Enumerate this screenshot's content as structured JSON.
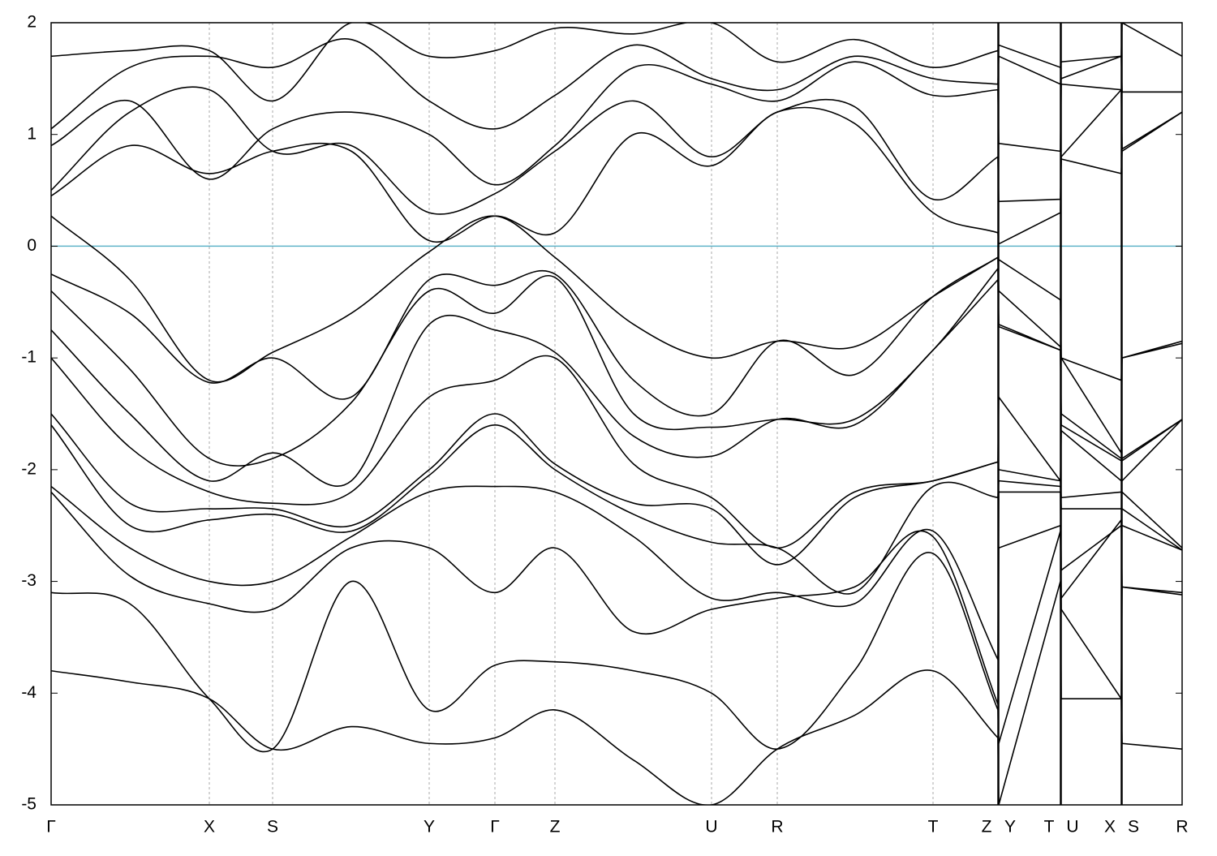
{
  "chart_data": {
    "type": "line",
    "xlim": [
      0,
      1394
    ],
    "ylim": [
      -5,
      2
    ],
    "yticks": [
      -5,
      -4,
      -3,
      -2,
      -1,
      0,
      1,
      2
    ],
    "xticks": [
      {
        "value": 0,
        "label": "Γ"
      },
      {
        "value": 195,
        "label": "X"
      },
      {
        "value": 273,
        "label": "S"
      },
      {
        "value": 466,
        "label": "Y"
      },
      {
        "value": 547,
        "label": "Γ"
      },
      {
        "value": 621,
        "label": "Z"
      },
      {
        "value": 814,
        "label": "U"
      },
      {
        "value": 895,
        "label": "R"
      },
      {
        "value": 1087,
        "label": "T"
      },
      {
        "value": 1167,
        "label": "Z"
      },
      {
        "value": 1168,
        "label": "Y"
      },
      {
        "value": 1244,
        "label": "T"
      },
      {
        "value": 1245,
        "label": "U"
      },
      {
        "value": 1319,
        "label": "X"
      },
      {
        "value": 1320,
        "label": "S"
      },
      {
        "value": 1394,
        "label": "R"
      }
    ],
    "grid": true,
    "hline": {
      "value": 0,
      "color": "#5fb3c8"
    },
    "x": [
      0,
      97,
      195,
      273,
      370,
      466,
      547,
      621,
      718,
      814,
      895,
      990,
      1087,
      1167,
      1168,
      1244,
      1245,
      1319,
      1320,
      1394
    ],
    "series": [
      {
        "color": "#000000",
        "values": [
          0.27,
          -0.3,
          -1.2,
          -0.95,
          -0.6,
          -0.05,
          0.27,
          -0.1,
          -0.7,
          -1.0,
          -0.85,
          -0.9,
          -0.45,
          -0.1,
          -0.12,
          -0.48,
          -1.0,
          -1.2,
          -1.0,
          -0.85
        ]
      },
      {
        "color": "#000000",
        "values": [
          -0.25,
          -0.6,
          -1.22,
          -1.0,
          -1.35,
          -0.3,
          -0.35,
          -0.25,
          -1.2,
          -1.5,
          -0.85,
          -1.15,
          -0.45,
          -0.1,
          -0.4,
          -0.9,
          -1.0,
          -1.85,
          -1.0,
          -0.87
        ]
      },
      {
        "color": "#000000",
        "values": [
          -0.4,
          -1.1,
          -1.9,
          -1.9,
          -1.4,
          -0.4,
          -0.6,
          -0.28,
          -1.5,
          -1.62,
          -1.55,
          -1.55,
          -0.93,
          -0.2,
          -0.7,
          -0.93,
          -1.5,
          -1.9,
          -1.9,
          -1.55
        ]
      },
      {
        "color": "#000000",
        "values": [
          -0.75,
          -1.5,
          -2.1,
          -1.85,
          -2.1,
          -0.7,
          -0.75,
          -0.95,
          -1.7,
          -1.88,
          -1.55,
          -1.6,
          -0.93,
          -0.3,
          -0.72,
          -0.93,
          -1.6,
          -1.92,
          -1.92,
          -1.55
        ]
      },
      {
        "color": "#000000",
        "values": [
          -1.0,
          -1.8,
          -2.2,
          -2.3,
          -2.2,
          -1.35,
          -1.2,
          -1.0,
          -1.95,
          -2.25,
          -2.7,
          -2.2,
          -2.1,
          -1.93,
          -1.35,
          -2.1,
          -1.65,
          -2.1,
          -2.1,
          -1.55
        ]
      },
      {
        "color": "#000000",
        "values": [
          -1.5,
          -2.3,
          -2.35,
          -2.35,
          -2.5,
          -2.0,
          -1.5,
          -1.95,
          -2.3,
          -2.35,
          -2.85,
          -2.25,
          -2.1,
          -1.93,
          -2.0,
          -2.1,
          -2.25,
          -2.2,
          -2.2,
          -2.7
        ]
      },
      {
        "color": "#000000",
        "values": [
          -1.6,
          -2.5,
          -2.45,
          -2.4,
          -2.55,
          -2.05,
          -1.6,
          -2.0,
          -2.4,
          -2.65,
          -2.7,
          -3.1,
          -2.15,
          -2.25,
          -2.1,
          -2.15,
          -2.35,
          -2.35,
          -2.35,
          -2.72
        ]
      },
      {
        "color": "#000000",
        "values": [
          -2.15,
          -2.7,
          -3.0,
          -3.0,
          -2.6,
          -2.2,
          -2.15,
          -2.2,
          -2.6,
          -3.15,
          -3.1,
          -3.2,
          -2.55,
          -3.7,
          -2.2,
          -2.2,
          -2.9,
          -2.5,
          -2.5,
          -2.72
        ]
      },
      {
        "color": "#000000",
        "values": [
          -2.2,
          -2.95,
          -3.2,
          -3.25,
          -2.7,
          -2.7,
          -3.1,
          -2.7,
          -3.45,
          -3.25,
          -3.15,
          -3.05,
          -2.6,
          -4.1,
          -2.7,
          -2.5,
          -3.15,
          -2.45,
          -3.05,
          -3.12
        ]
      },
      {
        "color": "#000000",
        "values": [
          -3.1,
          -3.2,
          -4.05,
          -4.5,
          -3.0,
          -4.15,
          -3.75,
          -3.72,
          -3.8,
          -4.0,
          -4.5,
          -3.8,
          -2.75,
          -4.15,
          -4.45,
          -2.55,
          -3.25,
          -4.05,
          -4.45,
          -4.5
        ]
      },
      {
        "color": "#000000",
        "values": [
          -3.8,
          -3.9,
          -4.05,
          -4.5,
          -4.3,
          -4.45,
          -4.4,
          -4.15,
          -4.6,
          -5.0,
          -4.5,
          -4.2,
          -3.8,
          -4.4,
          -5.0,
          -3.0,
          -4.05,
          -4.05,
          -3.05,
          -3.1
        ]
      },
      {
        "color": "#000000",
        "values": [
          0.45,
          0.9,
          0.65,
          0.85,
          0.85,
          0.05,
          0.27,
          0.12,
          1.0,
          0.72,
          1.2,
          1.1,
          0.3,
          0.12,
          0.02,
          0.3,
          0.78,
          0.65,
          0.85,
          1.2
        ]
      },
      {
        "color": "#000000",
        "values": [
          0.5,
          1.2,
          1.4,
          0.85,
          0.9,
          0.3,
          0.47,
          0.85,
          1.3,
          0.8,
          1.2,
          1.25,
          0.42,
          0.8,
          0.4,
          0.42,
          0.8,
          1.4,
          0.87,
          1.2
        ]
      },
      {
        "color": "#000000",
        "values": [
          0.9,
          1.3,
          0.6,
          1.05,
          1.2,
          1.0,
          0.55,
          0.9,
          1.6,
          1.45,
          1.3,
          1.65,
          1.35,
          1.4,
          0.92,
          0.85,
          1.45,
          1.4,
          1.38,
          1.38
        ]
      },
      {
        "color": "#000000",
        "values": [
          1.05,
          1.6,
          1.7,
          1.6,
          1.85,
          1.3,
          1.05,
          1.35,
          1.8,
          1.5,
          1.4,
          1.7,
          1.5,
          1.45,
          1.7,
          1.45,
          1.5,
          1.7,
          1.38,
          1.38
        ]
      },
      {
        "color": "#000000",
        "values": [
          1.7,
          1.75,
          1.75,
          1.3,
          2.0,
          1.7,
          1.75,
          1.95,
          1.9,
          2.0,
          1.65,
          1.85,
          1.6,
          1.75,
          1.8,
          1.6,
          1.65,
          1.7,
          2.0,
          1.7
        ]
      }
    ]
  }
}
